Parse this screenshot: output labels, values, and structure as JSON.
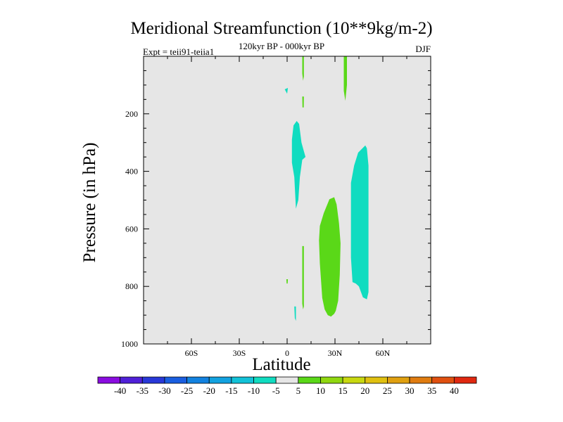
{
  "chart_data": {
    "type": "heatmap",
    "title": "Meridional Streamfunction (10**9kg/m-2)",
    "subtitle": "120kyr BP - 000kyr BP",
    "expt_label": "Expt = teii91-teiia1",
    "season": "DJF",
    "xlabel": "Latitude",
    "ylabel": "Pressure (in hPa)",
    "xlim": [
      -90,
      90
    ],
    "ylim": [
      1000,
      0
    ],
    "x_ticks": [
      {
        "value": -60,
        "label": "60S"
      },
      {
        "value": -30,
        "label": "30S"
      },
      {
        "value": 0,
        "label": "0"
      },
      {
        "value": 30,
        "label": "30N"
      },
      {
        "value": 60,
        "label": "60N"
      }
    ],
    "y_ticks": [
      {
        "value": 200,
        "label": "200"
      },
      {
        "value": 400,
        "label": "400"
      },
      {
        "value": 600,
        "label": "600"
      },
      {
        "value": 800,
        "label": "800"
      },
      {
        "value": 1000,
        "label": "1000"
      }
    ],
    "background_color": "#e6e6e6",
    "colorbar": {
      "levels": [
        "-40",
        "-35",
        "-30",
        "-25",
        "-20",
        "-15",
        "-10",
        "-5",
        "5",
        "10",
        "15",
        "20",
        "25",
        "30",
        "35",
        "40"
      ],
      "colors": [
        "#8a0ce0",
        "#5020d8",
        "#2838d8",
        "#1a5ee0",
        "#1282e0",
        "#12a2e0",
        "#12c2d8",
        "#10dcc0",
        "#e6e6e6",
        "#5ad818",
        "#90d810",
        "#c8d810",
        "#e0c010",
        "#e0a010",
        "#e07c10",
        "#e05010",
        "#e02810"
      ]
    },
    "regions": [
      {
        "name": "positive cell 30N",
        "value_range": "5 to 10",
        "color": "#5ad818",
        "points": [
          [
            20.5,
            590
          ],
          [
            23,
            545
          ],
          [
            26.5,
            497
          ],
          [
            29.5,
            490
          ],
          [
            31,
            515
          ],
          [
            32.5,
            580
          ],
          [
            33.5,
            650
          ],
          [
            33,
            760
          ],
          [
            32,
            850
          ],
          [
            30.5,
            885
          ],
          [
            29.5,
            895
          ],
          [
            27.5,
            905
          ],
          [
            25.5,
            900
          ],
          [
            23.5,
            880
          ],
          [
            22,
            840
          ],
          [
            20.5,
            720
          ],
          [
            20,
            640
          ]
        ]
      },
      {
        "name": "negative cell 40-50N",
        "value_range": "-10 to -5",
        "color": "#10dcc0",
        "points": [
          [
            40,
            440
          ],
          [
            42,
            380
          ],
          [
            44.5,
            335
          ],
          [
            49,
            310
          ],
          [
            50,
            320
          ],
          [
            51,
            380
          ],
          [
            51,
            820
          ],
          [
            50,
            845
          ],
          [
            47.5,
            838
          ],
          [
            45,
            800
          ],
          [
            43,
            790
          ],
          [
            41,
            785
          ],
          [
            40,
            700
          ]
        ]
      },
      {
        "name": "negative band near equator upper",
        "value_range": "-10 to -5",
        "color": "#10dcc0",
        "points": [
          [
            3,
            290
          ],
          [
            4,
            240
          ],
          [
            6,
            225
          ],
          [
            7.5,
            235
          ],
          [
            9,
            300
          ],
          [
            10.5,
            330
          ],
          [
            11.5,
            350
          ],
          [
            9.5,
            360
          ],
          [
            8,
            420
          ],
          [
            7,
            500
          ],
          [
            5.5,
            530
          ],
          [
            4.5,
            420
          ],
          [
            3,
            370
          ]
        ]
      },
      {
        "name": "positive filament top",
        "value_range": "5 to 10",
        "color": "#5ad818",
        "points": [
          [
            9.5,
            0
          ],
          [
            10.5,
            0
          ],
          [
            10.5,
            70
          ],
          [
            10,
            85
          ],
          [
            9.5,
            60
          ]
        ]
      },
      {
        "name": "positive filament upper",
        "value_range": "5 to 10",
        "color": "#5ad818",
        "points": [
          [
            9.5,
            140
          ],
          [
            10.5,
            140
          ],
          [
            10.4,
            178
          ],
          [
            9.6,
            178
          ]
        ]
      },
      {
        "name": "positive filament 35N",
        "value_range": "5 to 10",
        "color": "#5ad818",
        "points": [
          [
            35.5,
            0
          ],
          [
            37.5,
            0
          ],
          [
            37.5,
            100
          ],
          [
            36.5,
            155
          ],
          [
            35.5,
            120
          ]
        ]
      },
      {
        "name": "positive filament lower",
        "value_range": "5 to 10",
        "color": "#5ad818",
        "points": [
          [
            9.5,
            660
          ],
          [
            10.5,
            660
          ],
          [
            10.5,
            870
          ],
          [
            10,
            880
          ],
          [
            9.5,
            860
          ]
        ]
      },
      {
        "name": "positive speck",
        "value_range": "5 to 10",
        "color": "#5ad818",
        "points": [
          [
            -0.5,
            775
          ],
          [
            0.5,
            775
          ],
          [
            0.3,
            790
          ],
          [
            -0.3,
            790
          ]
        ]
      },
      {
        "name": "negative speck upper",
        "value_range": "-10 to -5",
        "color": "#10dcc0",
        "points": [
          [
            -1.5,
            115
          ],
          [
            0.5,
            110
          ],
          [
            0,
            130
          ]
        ]
      },
      {
        "name": "negative speck lower",
        "value_range": "-10 to -5",
        "color": "#10dcc0",
        "points": [
          [
            4.5,
            870
          ],
          [
            5.5,
            870
          ],
          [
            5.5,
            920
          ],
          [
            4.8,
            910
          ]
        ]
      }
    ]
  }
}
